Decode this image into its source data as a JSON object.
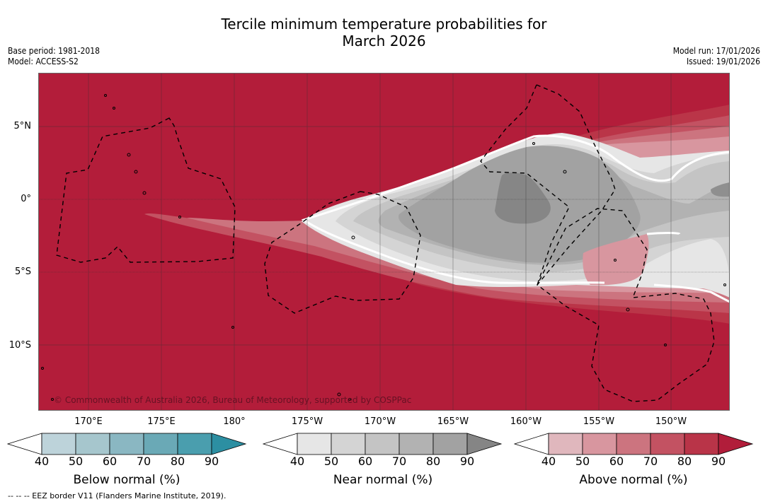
{
  "title_line1": "Tercile minimum temperature probabilities for",
  "title_line2": "March 2026",
  "base_period": "Base period: 1981-2018",
  "model": "Model: ACCESS-S2",
  "model_run": "Model run: 17/01/2026",
  "issued": "Issued: 19/01/2026",
  "lat_labels": [
    "5°N",
    "0°",
    "5°S",
    "10°S"
  ],
  "lon_labels": [
    "170°E",
    "175°E",
    "180°",
    "175°W",
    "170°W",
    "165°W",
    "160°W",
    "155°W",
    "150°W"
  ],
  "copyright": "© Commonwealth of Australia 2026, Bureau of Meteorology, supported by COSPPac",
  "colorbars": [
    {
      "label": "Below normal (%)",
      "ticks": [
        "40",
        "50",
        "60",
        "70",
        "80",
        "90"
      ],
      "colors": [
        "#ffffff",
        "#bdd3da",
        "#a6c6cd",
        "#8ab7c2",
        "#6aa9b6",
        "#4a9eae",
        "#2c8fa2"
      ]
    },
    {
      "label": "Near normal (%)",
      "ticks": [
        "40",
        "50",
        "60",
        "70",
        "80",
        "90"
      ],
      "colors": [
        "#ffffff",
        "#e6e6e6",
        "#d4d4d4",
        "#c4c4c4",
        "#b2b2b2",
        "#a2a2a2",
        "#858585"
      ]
    },
    {
      "label": "Above normal (%)",
      "ticks": [
        "40",
        "50",
        "60",
        "70",
        "80",
        "90"
      ],
      "colors": [
        "#ffffff",
        "#e0b7bd",
        "#d8969f",
        "#cc747f",
        "#c35262",
        "#b93448",
        "#b11d3a"
      ]
    }
  ],
  "footer": "--  --  -- EEZ border V11 (Flanders Marine Institute, 2019).",
  "colors": {
    "above_90": "#b31d3a",
    "near_max": "#868686"
  }
}
